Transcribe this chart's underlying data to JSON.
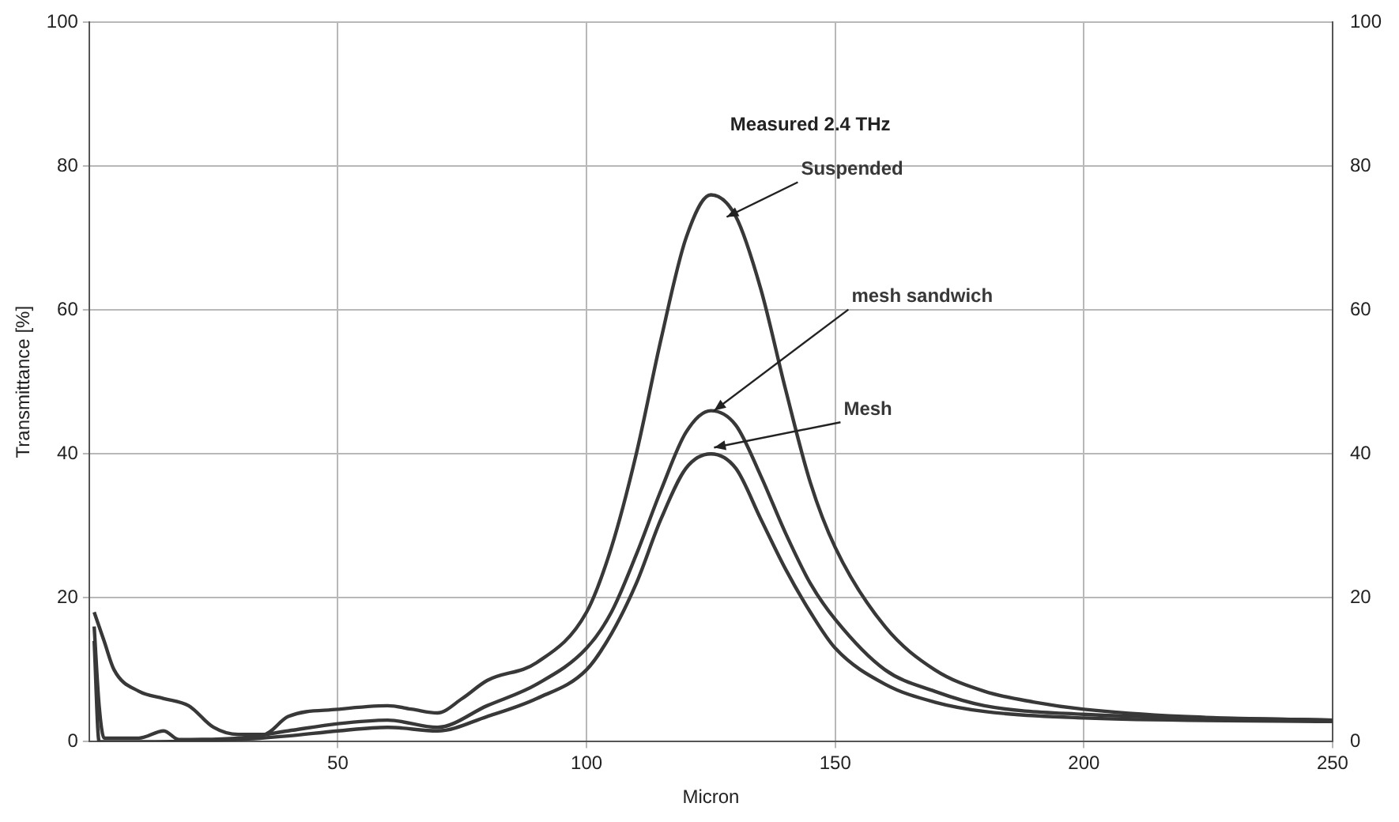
{
  "chart_data": {
    "type": "line",
    "title": "Measured 2.4 THz",
    "xlabel": "Micron",
    "ylabel": "Transmittance [%]",
    "xlim": [
      0,
      250
    ],
    "xticks": [
      50,
      100,
      150,
      200,
      250
    ],
    "ylim": [
      0,
      100
    ],
    "yticks": [
      0,
      20,
      40,
      60,
      80,
      100
    ],
    "y2lim": [
      0,
      100
    ],
    "y2ticks": [
      0,
      20,
      40,
      60,
      80,
      100
    ],
    "grid": true,
    "marker": "none",
    "line_style": "solid",
    "series": [
      {
        "name": "Suspended",
        "color": "#383838",
        "x": [
          1,
          3,
          5,
          10,
          15,
          20,
          25,
          30,
          35,
          40,
          50,
          60,
          65,
          70,
          75,
          80,
          90,
          100,
          105,
          110,
          115,
          120,
          125,
          130,
          135,
          140,
          145,
          150,
          160,
          170,
          180,
          190,
          200,
          220,
          250
        ],
        "values": [
          18,
          14,
          10,
          7,
          6,
          5,
          2,
          1,
          1,
          3.5,
          4.5,
          5,
          4.5,
          4,
          6,
          8.5,
          11,
          18,
          27,
          40,
          56,
          70,
          76,
          73,
          63,
          49,
          36,
          27,
          16,
          10,
          7,
          5.5,
          4.5,
          3.5,
          3
        ]
      },
      {
        "name": "mesh sandwich",
        "color": "#383838",
        "x": [
          1,
          2,
          3,
          10,
          15,
          18,
          30,
          40,
          50,
          60,
          70,
          80,
          90,
          100,
          105,
          110,
          115,
          120,
          125,
          130,
          135,
          140,
          145,
          150,
          160,
          170,
          180,
          200,
          250
        ],
        "values": [
          16,
          5,
          0.5,
          0.5,
          1.5,
          0.3,
          0.5,
          1.5,
          2.5,
          3,
          2,
          5,
          8,
          13,
          18,
          26,
          35,
          43,
          46,
          44,
          37,
          29,
          22,
          17,
          10,
          7,
          5,
          3.8,
          3
        ]
      },
      {
        "name": "Mesh",
        "color": "#383838",
        "x": [
          1,
          2,
          10,
          30,
          40,
          50,
          60,
          70,
          80,
          90,
          100,
          105,
          110,
          115,
          120,
          125,
          130,
          135,
          140,
          145,
          150,
          160,
          170,
          180,
          200,
          250
        ],
        "values": [
          14,
          0,
          0,
          0.3,
          0.8,
          1.5,
          2,
          1.5,
          3.5,
          6,
          10,
          15,
          22,
          31,
          38,
          40,
          38,
          31,
          24,
          18,
          13,
          8,
          5.5,
          4.2,
          3.3,
          2.8
        ]
      }
    ]
  }
}
